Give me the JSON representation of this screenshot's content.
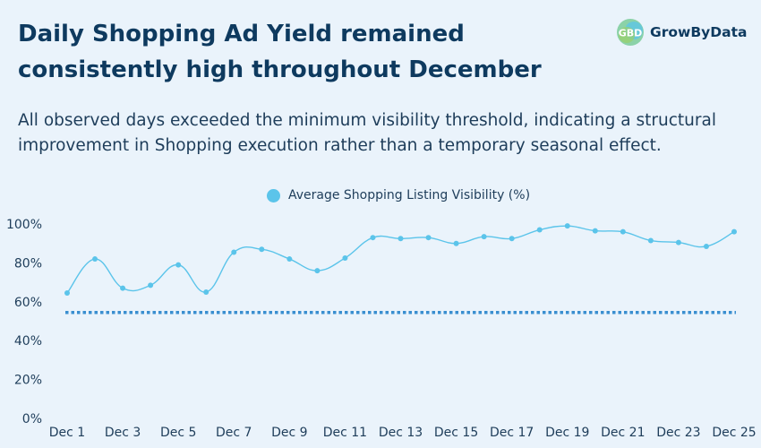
{
  "header": {
    "title": "Daily Shopping Ad Yield remained consistently high throughout December",
    "subtitle": "All observed days exceeded the minimum visibility threshold, indicating a structural improvement in Shopping execution rather than a temporary seasonal effect."
  },
  "logo": {
    "text": "GrowByData",
    "mark_text": "GBD"
  },
  "chart_data": {
    "type": "line",
    "title": "",
    "xlabel": "",
    "ylabel": "",
    "ylim": [
      0,
      100
    ],
    "y_ticks": [
      "0%",
      "20%",
      "40%",
      "60%",
      "80%",
      "100%"
    ],
    "x": [
      "Dec 1",
      "Dec 2",
      "Dec 3",
      "Dec 4",
      "Dec 5",
      "Dec 6",
      "Dec 7",
      "Dec 8",
      "Dec 9",
      "Dec 10",
      "Dec 11",
      "Dec 12",
      "Dec 13",
      "Dec 14",
      "Dec 15",
      "Dec 16",
      "Dec 17",
      "Dec 18",
      "Dec 19",
      "Dec 20",
      "Dec 21",
      "Dec 22",
      "Dec 23",
      "Dec 24",
      "Dec 25"
    ],
    "x_tick_labels": [
      "Dec 1",
      "",
      "Dec 3",
      "",
      "Dec 5",
      "",
      "Dec 7",
      "",
      "Dec 9",
      "",
      "Dec 11",
      "",
      "Dec 13",
      "",
      "Dec 15",
      "",
      "Dec 17",
      "",
      "Dec 19",
      "",
      "Dec 21",
      "",
      "Dec 23",
      "",
      "Dec 25"
    ],
    "series": [
      {
        "name": "Average Shopping Listing Visibility (%)",
        "color": "#5bc4ea",
        "values": [
          64.5,
          82,
          67,
          68.5,
          79,
          65,
          85.5,
          87,
          82,
          76,
          82.5,
          93,
          92.5,
          93,
          90,
          93.5,
          92.5,
          97,
          99,
          96.5,
          96,
          91.5,
          90.5,
          88.5,
          96
        ]
      }
    ],
    "threshold": {
      "value": 54.5,
      "color": "#3a8fd0",
      "style": "dotted"
    },
    "grid": false,
    "legend_position": "top-center"
  }
}
